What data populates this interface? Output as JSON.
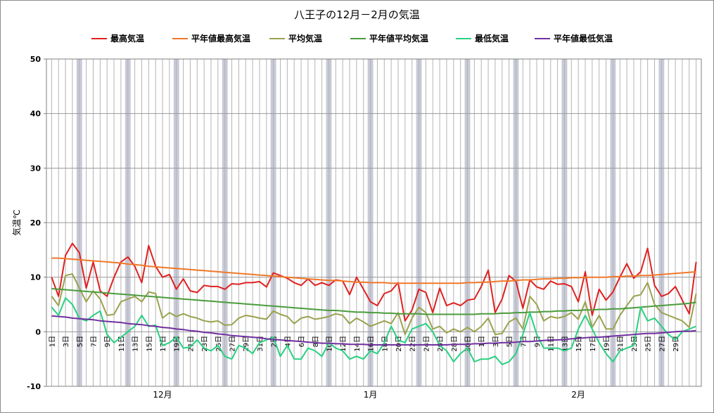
{
  "chart_data": {
    "type": "line",
    "title": "八王子の12月－2月の気温",
    "ylabel": "気温℃",
    "xlabel": "",
    "ylim": [
      -10,
      50
    ],
    "yticks": [
      -10,
      0,
      10,
      20,
      30,
      40,
      50
    ],
    "grid": true,
    "legend_position": "top",
    "x_day_labels": [
      "1日",
      "3日",
      "5日",
      "7日",
      "9日",
      "11日",
      "13日",
      "15日",
      "17日",
      "19日",
      "21日",
      "23日",
      "25日",
      "27日",
      "29日",
      "31日",
      "2日",
      "4日",
      "6日",
      "8日",
      "10日",
      "12日",
      "14日",
      "16日",
      "18日",
      "20日",
      "22日",
      "24日",
      "26日",
      "28日",
      "30日",
      "1日",
      "3日",
      "5日",
      "7日",
      "9日",
      "11日",
      "13日",
      "15日",
      "17日",
      "19日",
      "21日",
      "23日",
      "25日",
      "27日",
      "29日"
    ],
    "x_month_labels": [
      {
        "label": "12月",
        "index": 16
      },
      {
        "label": "1月",
        "index": 46
      },
      {
        "label": "2月",
        "index": 76
      }
    ],
    "weekend_day_indices": [
      4,
      11,
      18,
      25,
      32,
      40,
      46,
      53,
      60,
      67,
      74,
      81,
      88
    ],
    "series": [
      {
        "name": "最高気温",
        "color": "#e02020",
        "values": [
          10.0,
          6.5,
          14.0,
          16.2,
          14.5,
          8.0,
          12.8,
          7.5,
          6.5,
          10.0,
          12.8,
          13.7,
          12.0,
          9.0,
          15.8,
          12.0,
          10.0,
          10.5,
          7.8,
          9.7,
          7.5,
          7.2,
          8.5,
          8.3,
          8.3,
          7.8,
          8.8,
          8.7,
          9.0,
          9.0,
          9.2,
          8.2,
          10.8,
          10.3,
          9.8,
          9.0,
          8.5,
          9.7,
          8.5,
          9.0,
          8.5,
          9.5,
          9.3,
          6.8,
          10.0,
          7.8,
          5.5,
          4.8,
          7.0,
          7.5,
          9.0,
          2.0,
          4.0,
          7.8,
          7.2,
          3.5,
          8.0,
          4.8,
          5.3,
          4.8,
          5.8,
          6.0,
          8.3,
          11.3,
          3.5,
          6.0,
          10.3,
          9.2,
          4.3,
          9.5,
          8.2,
          7.8,
          9.3,
          8.7,
          8.8,
          8.3,
          5.5,
          11.0,
          3.0,
          7.8,
          5.8,
          7.3,
          10.0,
          12.5,
          9.8,
          11.0,
          15.3,
          8.5,
          6.5,
          7.0,
          8.3,
          5.8,
          3.3,
          12.8
        ]
      },
      {
        "name": "平年値最高気温",
        "color": "#f07828",
        "values": [
          13.5,
          13.5,
          13.4,
          13.3,
          13.2,
          13.1,
          13.0,
          12.9,
          12.8,
          12.7,
          12.6,
          12.4,
          12.3,
          12.2,
          12.0,
          11.9,
          11.8,
          11.7,
          11.6,
          11.5,
          11.4,
          11.3,
          11.2,
          11.1,
          11.0,
          10.9,
          10.8,
          10.7,
          10.6,
          10.5,
          10.4,
          10.3,
          10.2,
          10.1,
          10.0,
          9.9,
          9.8,
          9.7,
          9.6,
          9.5,
          9.4,
          9.4,
          9.3,
          9.2,
          9.1,
          9.1,
          9.0,
          9.0,
          9.0,
          8.9,
          8.9,
          8.9,
          8.9,
          8.9,
          8.9,
          8.9,
          8.9,
          8.9,
          8.9,
          8.9,
          9.0,
          9.0,
          9.1,
          9.1,
          9.2,
          9.3,
          9.3,
          9.4,
          9.5,
          9.5,
          9.6,
          9.7,
          9.7,
          9.8,
          9.8,
          9.9,
          9.9,
          10.0,
          10.0,
          10.0,
          10.0,
          10.1,
          10.1,
          10.2,
          10.2,
          10.3,
          10.3,
          10.4,
          10.5,
          10.6,
          10.7,
          10.8,
          10.9,
          11.0
        ]
      },
      {
        "name": "平均気温",
        "color": "#9aa24e",
        "values": [
          6.5,
          4.8,
          10.3,
          10.6,
          8.0,
          5.5,
          7.5,
          6.0,
          3.0,
          3.2,
          5.5,
          6.0,
          6.5,
          5.5,
          7.3,
          7.0,
          2.5,
          3.5,
          2.8,
          3.3,
          2.8,
          2.5,
          2.0,
          1.8,
          2.0,
          1.2,
          1.3,
          2.5,
          3.0,
          2.8,
          2.5,
          2.3,
          3.8,
          3.2,
          2.8,
          1.5,
          2.5,
          2.8,
          2.3,
          2.5,
          2.8,
          3.3,
          3.0,
          1.5,
          2.5,
          1.8,
          1.0,
          1.5,
          2.0,
          1.5,
          3.5,
          -0.5,
          2.5,
          4.5,
          3.5,
          0.5,
          1.0,
          -0.2,
          0.5,
          0.0,
          0.8,
          0.0,
          1.0,
          2.5,
          -0.5,
          -0.3,
          1.8,
          2.5,
          0.5,
          6.5,
          5.0,
          2.0,
          2.8,
          2.5,
          2.8,
          3.5,
          2.3,
          5.5,
          0.8,
          3.0,
          0.5,
          0.5,
          3.0,
          4.8,
          6.5,
          6.8,
          9.0,
          5.0,
          3.5,
          3.0,
          2.5,
          2.0,
          0.8,
          7.0
        ]
      },
      {
        "name": "平年値平均気温",
        "color": "#4a9c3c",
        "values": [
          7.9,
          7.8,
          7.7,
          7.6,
          7.5,
          7.4,
          7.3,
          7.2,
          7.1,
          7.0,
          6.9,
          6.8,
          6.7,
          6.6,
          6.5,
          6.4,
          6.3,
          6.2,
          6.1,
          6.0,
          5.9,
          5.8,
          5.7,
          5.6,
          5.5,
          5.4,
          5.3,
          5.2,
          5.1,
          5.0,
          4.9,
          4.8,
          4.7,
          4.6,
          4.5,
          4.4,
          4.3,
          4.2,
          4.1,
          4.0,
          3.9,
          3.9,
          3.8,
          3.7,
          3.6,
          3.6,
          3.5,
          3.5,
          3.4,
          3.4,
          3.3,
          3.3,
          3.3,
          3.3,
          3.2,
          3.2,
          3.2,
          3.2,
          3.2,
          3.2,
          3.2,
          3.2,
          3.3,
          3.3,
          3.3,
          3.4,
          3.4,
          3.5,
          3.5,
          3.6,
          3.6,
          3.7,
          3.7,
          3.8,
          3.8,
          3.9,
          3.9,
          4.0,
          4.0,
          4.1,
          4.1,
          4.2,
          4.2,
          4.3,
          4.4,
          4.5,
          4.6,
          4.7,
          4.8,
          4.9,
          5.0,
          5.1,
          5.2,
          5.4
        ]
      },
      {
        "name": "最低気温",
        "color": "#28d080",
        "values": [
          4.5,
          3.0,
          6.2,
          5.0,
          2.5,
          2.0,
          3.0,
          3.8,
          -0.5,
          -2.0,
          -1.0,
          0.0,
          1.0,
          3.0,
          1.0,
          1.2,
          -2.5,
          -2.0,
          -1.0,
          -3.0,
          -2.8,
          -1.5,
          -3.0,
          -3.5,
          -2.5,
          -4.5,
          -5.0,
          -2.5,
          -3.0,
          -4.0,
          -2.0,
          -1.5,
          -1.0,
          -4.5,
          -2.5,
          -5.0,
          -5.0,
          -3.0,
          -3.5,
          -4.5,
          -2.0,
          -3.0,
          -3.5,
          -5.0,
          -4.5,
          -5.0,
          -3.5,
          -4.0,
          -2.0,
          1.0,
          -1.5,
          -2.0,
          0.5,
          1.0,
          1.5,
          0.0,
          -2.5,
          -3.5,
          -5.5,
          -4.0,
          -3.0,
          -5.5,
          -5.0,
          -5.0,
          -4.5,
          -6.0,
          -5.5,
          -4.0,
          -0.5,
          3.5,
          -0.5,
          -3.0,
          -3.0,
          -3.0,
          -3.5,
          -3.0,
          0.5,
          3.0,
          0.5,
          -2.0,
          -4.0,
          -5.5,
          -3.5,
          -3.0,
          -2.5,
          4.5,
          2.0,
          2.5,
          1.0,
          -0.5,
          -1.5,
          0.0,
          0.5,
          1.0
        ]
      },
      {
        "name": "平年値最低気温",
        "color": "#7030a0",
        "values": [
          2.9,
          2.8,
          2.7,
          2.5,
          2.4,
          2.3,
          2.2,
          2.0,
          1.9,
          1.8,
          1.7,
          1.5,
          1.4,
          1.3,
          1.1,
          1.0,
          0.8,
          0.7,
          0.5,
          0.4,
          0.2,
          0.1,
          -0.1,
          -0.2,
          -0.4,
          -0.5,
          -0.7,
          -0.8,
          -0.9,
          -1.0,
          -1.1,
          -1.3,
          -1.4,
          -1.5,
          -1.6,
          -1.7,
          -1.8,
          -1.9,
          -2.0,
          -2.1,
          -2.1,
          -2.2,
          -2.2,
          -2.3,
          -2.3,
          -2.3,
          -2.4,
          -2.4,
          -2.4,
          -2.4,
          -2.4,
          -2.4,
          -2.4,
          -2.4,
          -2.4,
          -2.4,
          -2.4,
          -2.4,
          -2.3,
          -2.3,
          -2.3,
          -2.2,
          -2.2,
          -2.1,
          -2.1,
          -2.0,
          -2.0,
          -1.9,
          -1.8,
          -1.8,
          -1.7,
          -1.6,
          -1.5,
          -1.5,
          -1.4,
          -1.3,
          -1.2,
          -1.1,
          -1.0,
          -1.0,
          -0.9,
          -0.8,
          -0.7,
          -0.6,
          -0.5,
          -0.4,
          -0.3,
          -0.3,
          -0.2,
          -0.1,
          0.0,
          0.1,
          0.1,
          0.2
        ]
      }
    ]
  }
}
